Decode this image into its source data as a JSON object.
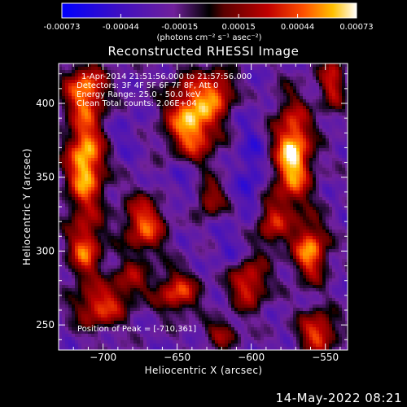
{
  "chart_data": {
    "type": "heatmap",
    "title": "Reconstructed RHESSI Image",
    "xlabel": "Heliocentric X (arcsec)",
    "ylabel": "Heliocentric Y (arcsec)",
    "xlim": [
      -730,
      -535
    ],
    "ylim": [
      233,
      427
    ],
    "xticks": [
      -700,
      -650,
      -600,
      -550
    ],
    "yticks": [
      250,
      300,
      350,
      400
    ],
    "colorbar": {
      "ticks": [
        "-0.00073",
        "-0.00044",
        "-0.00015",
        "0.00015",
        "0.00044",
        "0.00073"
      ],
      "min": -0.00073,
      "max": 0.00073,
      "units": "(photons cm⁻² s⁻¹ asec⁻²)"
    },
    "annotations": [
      "1-Apr-2014 21:51:56.000 to 21:57:56.000",
      "Detectors: 3F 4F 5F 6F 7F 8F, Att 0",
      "Energy Range: 25.0 - 50.0 keV",
      "Clean     Total counts: 2.06E+04"
    ],
    "peak_label": "Position of Peak = [-710,361]",
    "peak": [
      -710,
      361
    ],
    "blobs": [
      {
        "x": -712,
        "y": 360,
        "sx": 9,
        "sy": 25,
        "a": 1.0
      },
      {
        "x": -712,
        "y": 410,
        "sx": 10,
        "sy": 12,
        "a": 0.75
      },
      {
        "x": -712,
        "y": 300,
        "sx": 8,
        "sy": 14,
        "a": 0.7
      },
      {
        "x": -702,
        "y": 262,
        "sx": 12,
        "sy": 10,
        "a": 0.7
      },
      {
        "x": -672,
        "y": 318,
        "sx": 10,
        "sy": 14,
        "a": 0.75
      },
      {
        "x": -682,
        "y": 280,
        "sx": 9,
        "sy": 9,
        "a": 0.45
      },
      {
        "x": -640,
        "y": 388,
        "sx": 12,
        "sy": 20,
        "a": 1.0
      },
      {
        "x": -622,
        "y": 408,
        "sx": 8,
        "sy": 10,
        "a": 0.6
      },
      {
        "x": -628,
        "y": 335,
        "sx": 7,
        "sy": 8,
        "a": 0.55
      },
      {
        "x": -650,
        "y": 272,
        "sx": 10,
        "sy": 10,
        "a": 0.7
      },
      {
        "x": -602,
        "y": 278,
        "sx": 9,
        "sy": 12,
        "a": 0.7
      },
      {
        "x": -587,
        "y": 318,
        "sx": 8,
        "sy": 12,
        "a": 0.55
      },
      {
        "x": -572,
        "y": 365,
        "sx": 9,
        "sy": 24,
        "a": 1.05
      },
      {
        "x": -560,
        "y": 300,
        "sx": 8,
        "sy": 14,
        "a": 0.85
      },
      {
        "x": -555,
        "y": 245,
        "sx": 9,
        "sy": 10,
        "a": 0.75
      },
      {
        "x": -545,
        "y": 415,
        "sx": 6,
        "sy": 14,
        "a": 0.6
      },
      {
        "x": -620,
        "y": 244,
        "sx": 8,
        "sy": 6,
        "a": 0.5
      }
    ],
    "dips": [
      {
        "x": -647,
        "y": 350,
        "sx": 10,
        "sy": 14,
        "a": 0.7
      },
      {
        "x": -600,
        "y": 355,
        "sx": 7,
        "sy": 25,
        "a": 0.75
      },
      {
        "x": -685,
        "y": 380,
        "sx": 8,
        "sy": 10,
        "a": 0.4
      },
      {
        "x": -615,
        "y": 300,
        "sx": 8,
        "sy": 10,
        "a": 0.45
      }
    ]
  },
  "timestamp": "14-May-2022 08:21"
}
